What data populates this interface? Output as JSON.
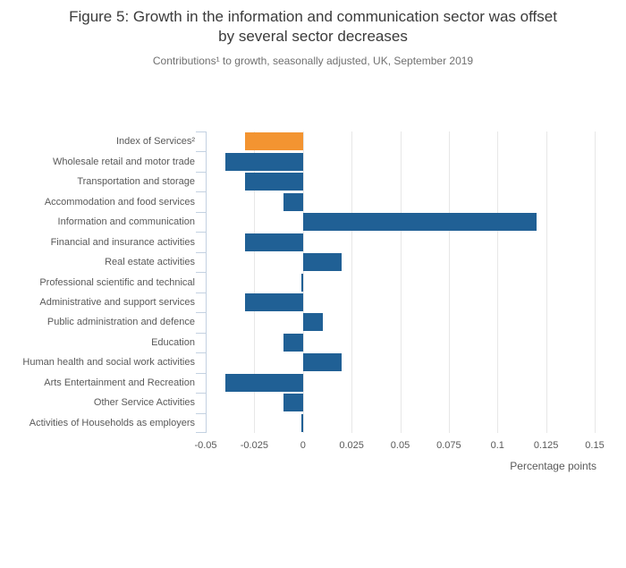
{
  "header": {
    "title": "Figure 5: Growth in the information and communication sector was offset by several sector decreases",
    "title_lines": [
      "Figure 5: Growth in the information and communication sector was offset",
      "by several sector decreases"
    ],
    "subtitle": "Contributions¹ to growth, seasonally adjusted, UK, September 2019"
  },
  "colors": {
    "bar_default": "#206095",
    "bar_highlight": "#f39431",
    "gridline": "#e7e7e7",
    "axis_line": "#c3d1e1",
    "title_text": "#3b3b3b",
    "subtitle_text": "#707070",
    "label_text": "#595959"
  },
  "chart_data": {
    "type": "bar",
    "orientation": "horizontal",
    "title": "Figure 5: Growth in the information and communication sector was offset by several sector decreases",
    "subtitle": "Contributions¹ to growth, seasonally adjusted, UK, September 2019",
    "xlabel": "Percentage points",
    "xlim": [
      -0.05,
      0.15
    ],
    "xticks": [
      -0.05,
      -0.025,
      0,
      0.025,
      0.05,
      0.075,
      0.1,
      0.125,
      0.15
    ],
    "xtick_labels": [
      "-0.05",
      "-0.025",
      "0",
      "0.025",
      "0.05",
      "0.075",
      "0.1",
      "0.125",
      "0.15"
    ],
    "categories": [
      "Index of Services²",
      "Wholesale retail and motor trade",
      "Transportation and storage",
      "Accommodation and food services",
      "Information and communication",
      "Financial and insurance activities",
      "Real estate activities",
      "Professional scientific and technical",
      "Administrative and support services",
      "Public administration and defence",
      "Education",
      "Human health and social work activities",
      "Arts Entertainment and Recreation",
      "Other Service Activities",
      "Activities of Households as employers"
    ],
    "values": [
      -0.03,
      -0.04,
      -0.03,
      -0.01,
      0.12,
      -0.03,
      0.02,
      -0.001,
      -0.03,
      0.01,
      -0.01,
      0.02,
      -0.04,
      -0.01,
      -0.001
    ],
    "highlight_index": 0,
    "grid": true,
    "legend": false
  }
}
